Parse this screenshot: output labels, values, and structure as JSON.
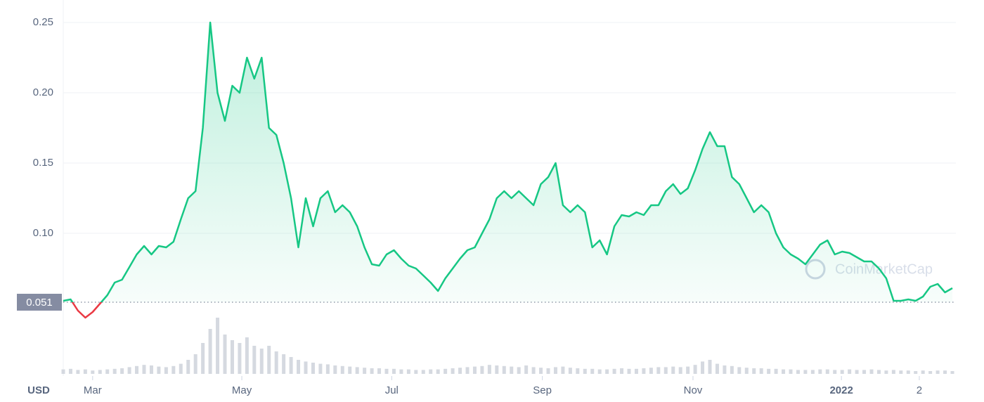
{
  "chart_data": {
    "type": "line",
    "currency": "USD",
    "watermark": "CoinMarketCap",
    "color": "#16c784",
    "below_color": "#ea3943",
    "grid": true,
    "xlim": [
      0,
      121
    ],
    "xticks": [
      {
        "value": 4,
        "label": "Mar"
      },
      {
        "value": 24.3,
        "label": "May"
      },
      {
        "value": 44.7,
        "label": "Jul"
      },
      {
        "value": 65.2,
        "label": "Sep"
      },
      {
        "value": 85.7,
        "label": "Nov"
      },
      {
        "value": 105.9,
        "label": "2022"
      },
      {
        "value": 116.5,
        "label": "2"
      }
    ],
    "ylim": [
      0.04,
      0.26
    ],
    "yticks": [
      {
        "value": 0.1,
        "label": "0.10"
      },
      0.15,
      {
        "value": 0.2,
        "label": "0.20"
      },
      0.25
    ],
    "reference": 0.051,
    "values": [
      0.052,
      0.053,
      0.045,
      0.04,
      0.044,
      0.05,
      0.056,
      0.065,
      0.067,
      0.076,
      0.085,
      0.091,
      0.085,
      0.091,
      0.09,
      0.094,
      0.11,
      0.125,
      0.13,
      0.175,
      0.25,
      0.2,
      0.18,
      0.205,
      0.2,
      0.225,
      0.21,
      0.225,
      0.175,
      0.17,
      0.15,
      0.125,
      0.09,
      0.125,
      0.105,
      0.125,
      0.13,
      0.115,
      0.12,
      0.115,
      0.105,
      0.09,
      0.078,
      0.077,
      0.085,
      0.088,
      0.082,
      0.077,
      0.075,
      0.07,
      0.065,
      0.059,
      0.068,
      0.075,
      0.082,
      0.088,
      0.09,
      0.1,
      0.11,
      0.125,
      0.13,
      0.125,
      0.13,
      0.125,
      0.12,
      0.135,
      0.14,
      0.15,
      0.12,
      0.115,
      0.12,
      0.115,
      0.09,
      0.095,
      0.085,
      0.105,
      0.113,
      0.112,
      0.115,
      0.113,
      0.12,
      0.12,
      0.13,
      0.135,
      0.128,
      0.132,
      0.145,
      0.16,
      0.172,
      0.162,
      0.162,
      0.14,
      0.135,
      0.125,
      0.115,
      0.12,
      0.115,
      0.1,
      0.09,
      0.085,
      0.082,
      0.078,
      0.085,
      0.092,
      0.095,
      0.085,
      0.087,
      0.086,
      0.083,
      0.08,
      0.08,
      0.075,
      0.068,
      0.052,
      0.052,
      0.053,
      0.052,
      0.055,
      0.062,
      0.064,
      0.058,
      0.061
    ],
    "volume": {
      "color": "#d5d9e0",
      "ylim": [
        0,
        100
      ],
      "values": [
        8,
        9,
        7,
        8,
        6,
        7,
        8,
        9,
        10,
        12,
        14,
        16,
        15,
        13,
        12,
        14,
        18,
        25,
        35,
        55,
        80,
        100,
        70,
        60,
        55,
        65,
        50,
        45,
        50,
        40,
        35,
        30,
        25,
        22,
        20,
        18,
        17,
        15,
        14,
        13,
        12,
        11,
        10,
        10,
        9,
        9,
        8,
        8,
        7,
        7,
        8,
        8,
        9,
        10,
        11,
        12,
        13,
        14,
        16,
        15,
        14,
        13,
        12,
        15,
        12,
        11,
        10,
        12,
        13,
        11,
        10,
        9,
        9,
        8,
        8,
        9,
        10,
        9,
        9,
        10,
        11,
        12,
        12,
        13,
        12,
        13,
        16,
        22,
        25,
        18,
        15,
        14,
        12,
        11,
        10,
        10,
        9,
        9,
        8,
        8,
        7,
        7,
        7,
        8,
        8,
        7,
        7,
        8,
        7,
        7,
        8,
        7,
        6,
        7,
        6,
        6,
        5,
        6,
        5,
        6,
        6,
        5
      ]
    }
  }
}
